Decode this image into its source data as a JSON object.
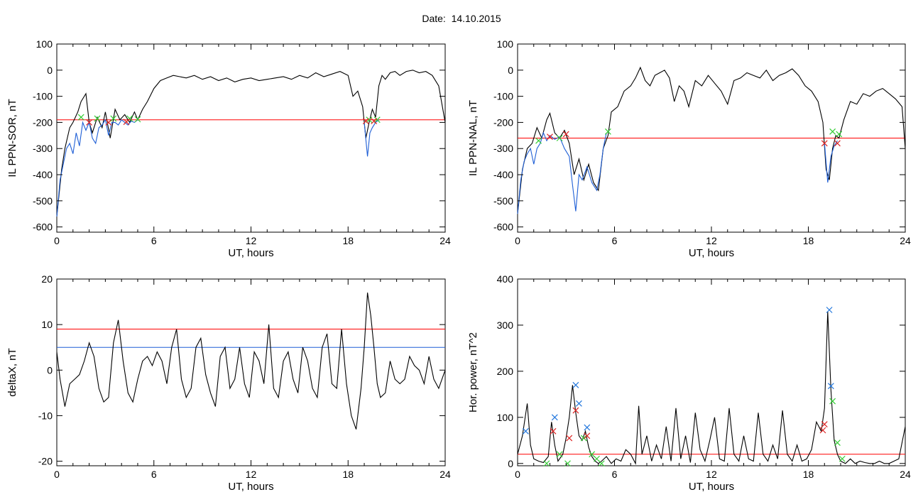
{
  "figure": {
    "date_label": "Date:",
    "date_value": "14.10.2015"
  },
  "chart_data": [
    {
      "type": "line",
      "ylabel": "IL PPN-SOR, nT",
      "xlabel": "UT, hours",
      "xlim": [
        0,
        24
      ],
      "ylim": [
        -620,
        100
      ],
      "xticks": [
        0,
        6,
        12,
        18,
        24
      ],
      "yticks": [
        100,
        0,
        -100,
        -200,
        -300,
        -400,
        -500,
        -600
      ],
      "threshold_red": -190,
      "series": [
        {
          "color": "#000000",
          "x": [
            0,
            0.3,
            0.5,
            0.8,
            1.0,
            1.3,
            1.5,
            1.8,
            2.0,
            2.2,
            2.5,
            2.8,
            3.0,
            3.3,
            3.6,
            3.9,
            4.2,
            4.5,
            4.8,
            5.0,
            5.3,
            5.6,
            6.0,
            6.4,
            6.8,
            7.2,
            7.6,
            8.0,
            8.5,
            9.0,
            9.5,
            10.0,
            10.5,
            11.0,
            11.5,
            12.0,
            12.5,
            13.0,
            13.5,
            14.0,
            14.5,
            15.0,
            15.5,
            16.0,
            16.5,
            17.0,
            17.5,
            18.0,
            18.3,
            18.6,
            18.9,
            19.1,
            19.3,
            19.5,
            19.7,
            19.9,
            20.1,
            20.3,
            20.6,
            20.9,
            21.2,
            21.6,
            22.0,
            22.4,
            22.8,
            23.2,
            23.6,
            24.0
          ],
          "y": [
            -560,
            -380,
            -300,
            -220,
            -200,
            -160,
            -120,
            -90,
            -200,
            -240,
            -180,
            -220,
            -160,
            -260,
            -150,
            -190,
            -170,
            -200,
            -160,
            -190,
            -150,
            -120,
            -70,
            -40,
            -30,
            -20,
            -25,
            -30,
            -20,
            -35,
            -25,
            -40,
            -30,
            -45,
            -35,
            -30,
            -40,
            -35,
            -30,
            -25,
            -35,
            -20,
            -30,
            -10,
            -25,
            -15,
            -5,
            -20,
            -100,
            -80,
            -140,
            -260,
            -200,
            -150,
            -180,
            -60,
            -20,
            -35,
            -10,
            -5,
            -20,
            -5,
            0,
            -10,
            -5,
            -20,
            -60,
            -200
          ]
        },
        {
          "color": "#1f5fd6",
          "x": [
            0,
            0.2,
            0.4,
            0.6,
            0.8,
            1.0,
            1.2,
            1.4,
            1.6,
            1.8,
            2.0,
            2.2,
            2.4,
            2.6,
            2.8,
            3.0,
            3.2,
            3.4,
            3.6,
            3.8,
            4.0,
            4.2,
            4.4,
            4.6,
            4.8,
            5.0
          ],
          "y": [
            -560,
            -420,
            -360,
            -300,
            -280,
            -320,
            -240,
            -290,
            -200,
            -230,
            -200,
            -260,
            -280,
            -220,
            -210,
            -190,
            -250,
            -200,
            -200,
            -210,
            -190,
            -200,
            -210,
            -195,
            -200,
            -190
          ]
        },
        {
          "color": "#1f5fd6",
          "x": [
            19.0,
            19.2,
            19.35,
            19.5,
            19.7,
            19.9
          ],
          "y": [
            -200,
            -330,
            -240,
            -220,
            -200,
            -190
          ]
        }
      ],
      "markers_red": [
        [
          2.0,
          -200
        ],
        [
          3.2,
          -200
        ],
        [
          4.3,
          -198
        ],
        [
          19.1,
          -195
        ],
        [
          19.6,
          -195
        ]
      ],
      "markers_green": [
        [
          1.5,
          -180
        ],
        [
          2.5,
          -185
        ],
        [
          3.5,
          -185
        ],
        [
          4.5,
          -185
        ],
        [
          5.0,
          -188
        ],
        [
          19.3,
          -190
        ],
        [
          19.8,
          -190
        ]
      ]
    },
    {
      "type": "line",
      "ylabel": "IL PPN-NAL, nT",
      "xlabel": "UT, hours",
      "xlim": [
        0,
        24
      ],
      "ylim": [
        -620,
        100
      ],
      "xticks": [
        0,
        6,
        12,
        18,
        24
      ],
      "yticks": [
        100,
        0,
        -100,
        -200,
        -300,
        -400,
        -500,
        -600
      ],
      "threshold_red": -260,
      "series": [
        {
          "color": "#000000",
          "x": [
            0,
            0.3,
            0.6,
            0.9,
            1.2,
            1.5,
            1.8,
            2.0,
            2.3,
            2.6,
            2.9,
            3.2,
            3.5,
            3.8,
            4.1,
            4.4,
            4.7,
            5.0,
            5.3,
            5.6,
            5.8,
            6.2,
            6.6,
            7.0,
            7.3,
            7.6,
            7.9,
            8.2,
            8.5,
            8.8,
            9.1,
            9.4,
            9.7,
            10.0,
            10.3,
            10.6,
            11.0,
            11.4,
            11.8,
            12.2,
            12.6,
            13.0,
            13.4,
            13.8,
            14.2,
            14.6,
            15.0,
            15.4,
            15.8,
            16.2,
            16.6,
            17.0,
            17.4,
            17.8,
            18.2,
            18.6,
            18.9,
            19.1,
            19.3,
            19.5,
            19.7,
            19.9,
            20.2,
            20.6,
            21.0,
            21.4,
            21.8,
            22.2,
            22.6,
            23.0,
            23.4,
            23.8,
            24.0
          ],
          "y": [
            -550,
            -380,
            -300,
            -280,
            -220,
            -260,
            -190,
            -165,
            -240,
            -260,
            -230,
            -280,
            -400,
            -340,
            -420,
            -360,
            -430,
            -460,
            -300,
            -250,
            -160,
            -140,
            -80,
            -60,
            -30,
            10,
            -40,
            -60,
            -20,
            -10,
            0,
            -30,
            -120,
            -60,
            -80,
            -140,
            -40,
            -60,
            -20,
            -50,
            -80,
            -130,
            -40,
            -30,
            -10,
            -20,
            -30,
            0,
            -40,
            -20,
            -10,
            5,
            -20,
            -60,
            -80,
            -120,
            -200,
            -380,
            -420,
            -300,
            -250,
            -260,
            -190,
            -120,
            -130,
            -90,
            -100,
            -80,
            -70,
            -90,
            -110,
            -140,
            -300
          ]
        },
        {
          "color": "#1f5fd6",
          "x": [
            0,
            0.2,
            0.4,
            0.6,
            0.8,
            1.0,
            1.2,
            1.4,
            1.6,
            1.8,
            2.0,
            2.3,
            2.6,
            2.9,
            3.2,
            3.4,
            3.6,
            3.8,
            4.0,
            4.3,
            4.6,
            4.9,
            5.1,
            5.3,
            5.5
          ],
          "y": [
            -550,
            -420,
            -350,
            -320,
            -300,
            -360,
            -300,
            -280,
            -240,
            -270,
            -250,
            -265,
            -255,
            -300,
            -330,
            -440,
            -540,
            -400,
            -420,
            -370,
            -430,
            -460,
            -400,
            -300,
            -240
          ]
        },
        {
          "color": "#1f5fd6",
          "x": [
            19.0,
            19.2,
            19.4,
            19.6,
            19.8
          ],
          "y": [
            -280,
            -430,
            -330,
            -290,
            -270
          ]
        }
      ],
      "markers_red": [
        [
          2.0,
          -255
        ],
        [
          3.0,
          -245
        ],
        [
          19.0,
          -280
        ],
        [
          19.8,
          -280
        ]
      ],
      "markers_green": [
        [
          1.3,
          -270
        ],
        [
          2.6,
          -260
        ],
        [
          5.6,
          -235
        ],
        [
          19.5,
          -235
        ],
        [
          19.9,
          -245
        ]
      ]
    },
    {
      "type": "line",
      "ylabel": "deltaX, nT",
      "xlabel": "UT, hours",
      "xlim": [
        0,
        24
      ],
      "ylim": [
        -21,
        20
      ],
      "xticks": [
        0,
        6,
        12,
        18,
        24
      ],
      "yticks": [
        20,
        10,
        0,
        -10,
        -20
      ],
      "threshold_red": 9,
      "threshold_blue": 5,
      "series": [
        {
          "color": "#000000",
          "x": [
            0,
            0.2,
            0.5,
            0.8,
            1.1,
            1.4,
            1.7,
            2.0,
            2.3,
            2.6,
            2.9,
            3.2,
            3.5,
            3.8,
            4.1,
            4.4,
            4.7,
            5.0,
            5.3,
            5.6,
            5.9,
            6.2,
            6.5,
            6.8,
            7.1,
            7.4,
            7.7,
            8.0,
            8.3,
            8.6,
            8.9,
            9.2,
            9.5,
            9.8,
            10.1,
            10.4,
            10.7,
            11.0,
            11.3,
            11.6,
            11.9,
            12.2,
            12.5,
            12.8,
            13.1,
            13.4,
            13.7,
            14.0,
            14.3,
            14.6,
            14.9,
            15.2,
            15.5,
            15.8,
            16.1,
            16.4,
            16.7,
            17.0,
            17.3,
            17.6,
            17.9,
            18.2,
            18.5,
            18.8,
            19.0,
            19.2,
            19.4,
            19.6,
            19.8,
            20.0,
            20.3,
            20.6,
            20.9,
            21.2,
            21.5,
            21.8,
            22.1,
            22.4,
            22.7,
            23.0,
            23.3,
            23.6,
            24.0
          ],
          "y": [
            4,
            -2,
            -8,
            -3,
            -2,
            -1,
            2,
            6,
            3,
            -4,
            -7,
            -6,
            6,
            11,
            2,
            -5,
            -7,
            -2,
            2,
            3,
            1,
            4,
            2,
            -3,
            5,
            9,
            -2,
            -6,
            -4,
            5,
            7,
            -1,
            -5,
            -8,
            3,
            5,
            -4,
            -2,
            5,
            -3,
            -6,
            4,
            2,
            -3,
            10,
            -4,
            -6,
            2,
            4,
            -2,
            -5,
            5,
            2,
            -4,
            -6,
            5,
            8,
            -3,
            -4,
            9,
            -3,
            -10,
            -13,
            -4,
            5,
            17,
            12,
            5,
            -3,
            -6,
            -5,
            2,
            -2,
            -3,
            -2,
            3,
            1,
            0,
            -3,
            3,
            -2,
            -4,
            0
          ]
        }
      ]
    },
    {
      "type": "line",
      "ylabel": "Hor. power, nT^2",
      "xlabel": "UT, hours",
      "xlim": [
        0,
        24
      ],
      "ylim": [
        -5,
        400
      ],
      "xticks": [
        0,
        6,
        12,
        18,
        24
      ],
      "yticks": [
        400,
        300,
        200,
        100,
        0
      ],
      "threshold_red": 20,
      "series": [
        {
          "color": "#000000",
          "x": [
            0,
            0.3,
            0.6,
            0.8,
            1.0,
            1.3,
            1.6,
            1.9,
            2.1,
            2.3,
            2.5,
            2.8,
            3.0,
            3.2,
            3.4,
            3.6,
            3.8,
            4.0,
            4.2,
            4.4,
            4.6,
            4.8,
            5.0,
            5.2,
            5.5,
            5.8,
            6.1,
            6.4,
            6.7,
            7.0,
            7.3,
            7.5,
            7.7,
            8.0,
            8.3,
            8.6,
            8.9,
            9.2,
            9.5,
            9.8,
            10.1,
            10.4,
            10.7,
            11.0,
            11.3,
            11.6,
            11.9,
            12.2,
            12.5,
            12.8,
            13.1,
            13.4,
            13.7,
            14.0,
            14.3,
            14.6,
            14.9,
            15.2,
            15.5,
            15.8,
            16.1,
            16.4,
            16.7,
            17.0,
            17.3,
            17.6,
            17.9,
            18.2,
            18.5,
            18.8,
            19.0,
            19.2,
            19.4,
            19.6,
            19.8,
            20.0,
            20.3,
            20.6,
            20.9,
            21.2,
            21.5,
            21.8,
            22.1,
            22.4,
            22.7,
            23.0,
            23.3,
            23.6,
            24.0
          ],
          "y": [
            20,
            60,
            130,
            40,
            10,
            5,
            2,
            15,
            90,
            40,
            5,
            20,
            55,
            100,
            170,
            110,
            60,
            50,
            70,
            35,
            15,
            5,
            0,
            5,
            15,
            0,
            10,
            5,
            30,
            20,
            0,
            125,
            20,
            60,
            5,
            40,
            10,
            80,
            5,
            120,
            10,
            60,
            2,
            110,
            30,
            5,
            50,
            100,
            10,
            5,
            120,
            20,
            5,
            60,
            10,
            5,
            110,
            20,
            5,
            40,
            10,
            115,
            20,
            5,
            40,
            5,
            10,
            30,
            90,
            70,
            120,
            330,
            160,
            50,
            20,
            5,
            0,
            10,
            0,
            5,
            2,
            0,
            0,
            5,
            0,
            0,
            5,
            10,
            80
          ]
        }
      ],
      "markers_red": [
        [
          2.2,
          70
        ],
        [
          3.2,
          55
        ],
        [
          3.6,
          115
        ],
        [
          4.3,
          60
        ],
        [
          18.9,
          72
        ],
        [
          19.0,
          85
        ]
      ],
      "markers_blue": [
        [
          0.5,
          70
        ],
        [
          2.3,
          100
        ],
        [
          3.6,
          170
        ],
        [
          3.8,
          130
        ],
        [
          4.3,
          78
        ],
        [
          19.3,
          333
        ],
        [
          19.4,
          168
        ]
      ],
      "markers_green": [
        [
          1.8,
          0
        ],
        [
          2.6,
          20
        ],
        [
          3.1,
          0
        ],
        [
          4.1,
          55
        ],
        [
          4.6,
          20
        ],
        [
          4.9,
          10
        ],
        [
          5.2,
          0
        ],
        [
          19.5,
          135
        ],
        [
          19.8,
          45
        ],
        [
          20.1,
          10
        ]
      ]
    }
  ],
  "colors": {
    "red_line": "#ff0000",
    "blue_line": "#1f5fd6",
    "green_marker": "#33cc33",
    "red_marker": "#dd2222",
    "blue_marker": "#2277dd",
    "axis": "#000000"
  }
}
